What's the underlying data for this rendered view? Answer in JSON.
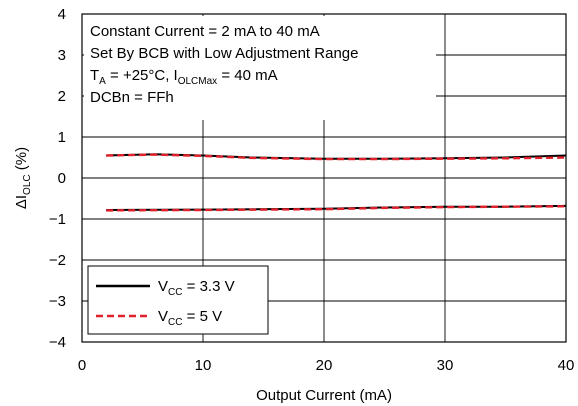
{
  "chart_data": {
    "type": "line",
    "xlabel": "Output Current (mA)",
    "ylabel": {
      "main": "ΔI",
      "sub": "OLC",
      "suffix": " (%)"
    },
    "xlim": [
      0,
      40
    ],
    "ylim": [
      -4,
      4
    ],
    "x_ticks": [
      0,
      10,
      20,
      30,
      40
    ],
    "y_ticks": [
      -4,
      -3,
      -2,
      -1,
      0,
      1,
      2,
      3,
      4
    ],
    "grid": true,
    "annotation_box": [
      [
        {
          "t": "Constant Current = 2 mA to 40 mA"
        }
      ],
      [
        {
          "t": "Set By BCB with Low Adjustment Range"
        }
      ],
      [
        {
          "t": "T"
        },
        {
          "t": "A",
          "sub": true
        },
        {
          "t": " = +25°C, I"
        },
        {
          "t": "OLCMax",
          "sub": true
        },
        {
          "t": " = 40 mA"
        }
      ],
      [
        {
          "t": "DCBn = FFh"
        }
      ]
    ],
    "legend": {
      "placement": "bottom-left",
      "entries": [
        {
          "main": "V",
          "sub": "CC",
          "suffix": " = 3.3 V",
          "series_index": 0
        },
        {
          "main": "V",
          "sub": "CC",
          "suffix": " = 5 V",
          "series_index": 1
        }
      ]
    },
    "series": [
      {
        "name": "VCC = 3.3 V",
        "color": "#000000",
        "style": "solid",
        "curves": [
          {
            "x": [
              2,
              6,
              10,
              14,
              20,
              25,
              30,
              35,
              40
            ],
            "y": [
              0.55,
              0.58,
              0.55,
              0.5,
              0.47,
              0.47,
              0.48,
              0.5,
              0.55
            ]
          },
          {
            "x": [
              2,
              10,
              20,
              25,
              30,
              35,
              40
            ],
            "y": [
              -0.78,
              -0.77,
              -0.75,
              -0.72,
              -0.7,
              -0.7,
              -0.68
            ]
          }
        ]
      },
      {
        "name": "VCC = 5 V",
        "color": "#e0202a",
        "style": "dashed",
        "curves": [
          {
            "x": [
              2,
              6,
              10,
              14,
              20,
              25,
              30,
              35,
              40
            ],
            "y": [
              0.55,
              0.57,
              0.54,
              0.49,
              0.46,
              0.46,
              0.47,
              0.48,
              0.5
            ]
          },
          {
            "x": [
              2,
              10,
              20,
              25,
              30,
              35,
              40
            ],
            "y": [
              -0.79,
              -0.78,
              -0.76,
              -0.73,
              -0.71,
              -0.7,
              -0.69
            ]
          }
        ]
      }
    ]
  }
}
